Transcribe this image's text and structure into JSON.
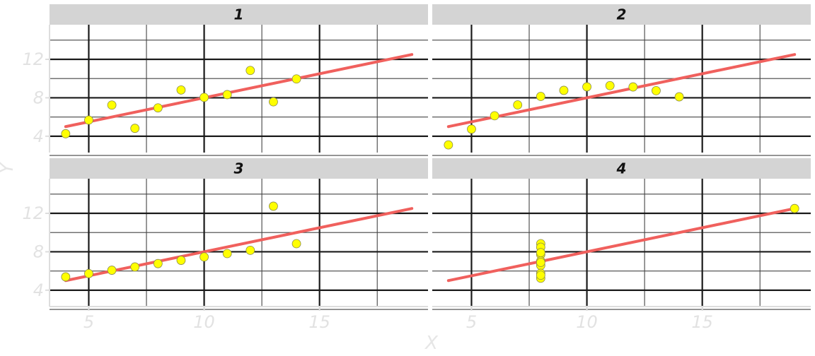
{
  "chart_data": {
    "type": "scatter",
    "xlabel": "X",
    "ylabel": "Y",
    "xlim": [
      3.3,
      19.7
    ],
    "ylim": [
      2.3,
      15.6
    ],
    "x_ticks": [
      5,
      10,
      15
    ],
    "y_ticks": [
      4,
      8,
      12
    ],
    "grid": true,
    "facet_layout": "2x2",
    "point_color": "#ffff00",
    "line_color": "#f0605d",
    "panels": [
      {
        "label": "1",
        "points": [
          [
            10,
            8.04
          ],
          [
            8,
            6.95
          ],
          [
            13,
            7.58
          ],
          [
            9,
            8.81
          ],
          [
            11,
            8.33
          ],
          [
            14,
            9.96
          ],
          [
            6,
            7.24
          ],
          [
            4,
            4.26
          ],
          [
            12,
            10.84
          ],
          [
            7,
            4.82
          ],
          [
            5,
            5.68
          ]
        ],
        "fit": {
          "x": [
            4,
            19
          ],
          "y": [
            5.0,
            12.5
          ]
        }
      },
      {
        "label": "2",
        "points": [
          [
            10,
            9.14
          ],
          [
            8,
            8.14
          ],
          [
            13,
            8.74
          ],
          [
            9,
            8.77
          ],
          [
            11,
            9.26
          ],
          [
            14,
            8.1
          ],
          [
            6,
            6.13
          ],
          [
            4,
            3.1
          ],
          [
            12,
            9.13
          ],
          [
            7,
            7.26
          ],
          [
            5,
            4.74
          ]
        ],
        "fit": {
          "x": [
            4,
            19
          ],
          "y": [
            5.0,
            12.5
          ]
        }
      },
      {
        "label": "3",
        "points": [
          [
            10,
            7.46
          ],
          [
            8,
            6.77
          ],
          [
            13,
            12.74
          ],
          [
            9,
            7.11
          ],
          [
            11,
            7.81
          ],
          [
            14,
            8.84
          ],
          [
            6,
            6.08
          ],
          [
            4,
            5.39
          ],
          [
            12,
            8.15
          ],
          [
            7,
            6.42
          ],
          [
            5,
            5.73
          ]
        ],
        "fit": {
          "x": [
            4,
            19
          ],
          "y": [
            5.0,
            12.5
          ]
        }
      },
      {
        "label": "4",
        "points": [
          [
            8,
            6.58
          ],
          [
            8,
            5.76
          ],
          [
            8,
            7.71
          ],
          [
            8,
            8.84
          ],
          [
            8,
            8.47
          ],
          [
            8,
            7.04
          ],
          [
            8,
            5.25
          ],
          [
            19,
            12.5
          ],
          [
            8,
            5.56
          ],
          [
            8,
            7.91
          ],
          [
            8,
            6.89
          ]
        ],
        "fit": {
          "x": [
            4,
            19
          ],
          "y": [
            5.0,
            12.5
          ]
        }
      }
    ]
  }
}
